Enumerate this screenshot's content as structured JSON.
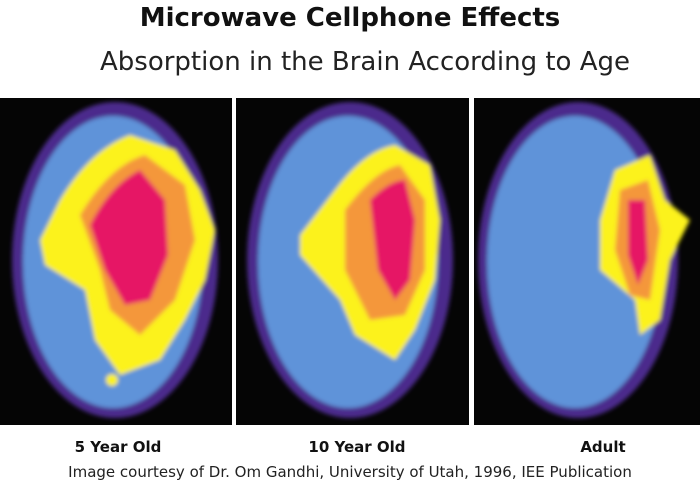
{
  "header": {
    "title": "Microwave Cellphone Effects",
    "subtitle": "Absorption in the Brain According to Age"
  },
  "panels": [
    {
      "label": "5 Year Old"
    },
    {
      "label": "10 Year Old"
    },
    {
      "label": "Adult"
    }
  ],
  "caption": "Image courtesy of Dr. Om Gandhi, University of Utah, 1996, IEE Publication"
}
